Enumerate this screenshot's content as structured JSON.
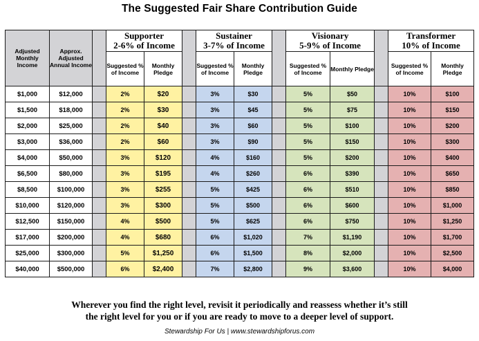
{
  "title": "The Suggested Fair Share Contribution Guide",
  "columns": {
    "adjusted_monthly_income": "Adjusted Monthly Income",
    "approx_adjusted_annual_income": "Approx. Adjusted Annual Income",
    "suggested_pct": "Suggested % of Income",
    "monthly_pledge": "Monthly Pledge"
  },
  "levels": [
    {
      "name": "Supporter",
      "range": "2-6% of Income",
      "color": "#fff2a2"
    },
    {
      "name": "Sustainer",
      "range": "3-7% of Income",
      "color": "#c5d6ee"
    },
    {
      "name": "Visionary",
      "range": "5-9% of Income",
      "color": "#d6e4bc"
    },
    {
      "name": "Transformer",
      "range": "10% of Income",
      "color": "#e5b1b1"
    }
  ],
  "rows": [
    {
      "monthly": "$1,000",
      "annual": "$12,000",
      "levels": [
        [
          "2%",
          "$20"
        ],
        [
          "3%",
          "$30"
        ],
        [
          "5%",
          "$50"
        ],
        [
          "10%",
          "$100"
        ]
      ]
    },
    {
      "monthly": "$1,500",
      "annual": "$18,000",
      "levels": [
        [
          "2%",
          "$30"
        ],
        [
          "3%",
          "$45"
        ],
        [
          "5%",
          "$75"
        ],
        [
          "10%",
          "$150"
        ]
      ]
    },
    {
      "monthly": "$2,000",
      "annual": "$25,000",
      "levels": [
        [
          "2%",
          "$40"
        ],
        [
          "3%",
          "$60"
        ],
        [
          "5%",
          "$100"
        ],
        [
          "10%",
          "$200"
        ]
      ]
    },
    {
      "monthly": "$3,000",
      "annual": "$36,000",
      "levels": [
        [
          "2%",
          "$60"
        ],
        [
          "3%",
          "$90"
        ],
        [
          "5%",
          "$150"
        ],
        [
          "10%",
          "$300"
        ]
      ]
    },
    {
      "monthly": "$4,000",
      "annual": "$50,000",
      "levels": [
        [
          "3%",
          "$120"
        ],
        [
          "4%",
          "$160"
        ],
        [
          "5%",
          "$200"
        ],
        [
          "10%",
          "$400"
        ]
      ]
    },
    {
      "monthly": "$6,500",
      "annual": "$80,000",
      "levels": [
        [
          "3%",
          "$195"
        ],
        [
          "4%",
          "$260"
        ],
        [
          "6%",
          "$390"
        ],
        [
          "10%",
          "$650"
        ]
      ]
    },
    {
      "monthly": "$8,500",
      "annual": "$100,000",
      "levels": [
        [
          "3%",
          "$255"
        ],
        [
          "5%",
          "$425"
        ],
        [
          "6%",
          "$510"
        ],
        [
          "10%",
          "$850"
        ]
      ]
    },
    {
      "monthly": "$10,000",
      "annual": "$120,000",
      "levels": [
        [
          "3%",
          "$300"
        ],
        [
          "5%",
          "$500"
        ],
        [
          "6%",
          "$600"
        ],
        [
          "10%",
          "$1,000"
        ]
      ]
    },
    {
      "monthly": "$12,500",
      "annual": "$150,000",
      "levels": [
        [
          "4%",
          "$500"
        ],
        [
          "5%",
          "$625"
        ],
        [
          "6%",
          "$750"
        ],
        [
          "10%",
          "$1,250"
        ]
      ]
    },
    {
      "monthly": "$17,000",
      "annual": "$200,000",
      "levels": [
        [
          "4%",
          "$680"
        ],
        [
          "6%",
          "$1,020"
        ],
        [
          "7%",
          "$1,190"
        ],
        [
          "10%",
          "$1,700"
        ]
      ]
    },
    {
      "monthly": "$25,000",
      "annual": "$300,000",
      "levels": [
        [
          "5%",
          "$1,250"
        ],
        [
          "6%",
          "$1,500"
        ],
        [
          "8%",
          "$2,000"
        ],
        [
          "10%",
          "$2,500"
        ]
      ]
    },
    {
      "monthly": "$40,000",
      "annual": "$500,000",
      "levels": [
        [
          "6%",
          "$2,400"
        ],
        [
          "7%",
          "$2,800"
        ],
        [
          "9%",
          "$3,600"
        ],
        [
          "10%",
          "$4,000"
        ]
      ]
    }
  ],
  "footer": {
    "line1": "Wherever you find the right level, revisit it periodically and reassess whether it’s still",
    "line2": "the right level for you or if you are ready to move to a deeper level of support."
  },
  "credit": "Stewardship For Us | www.stewardshipforus.com"
}
